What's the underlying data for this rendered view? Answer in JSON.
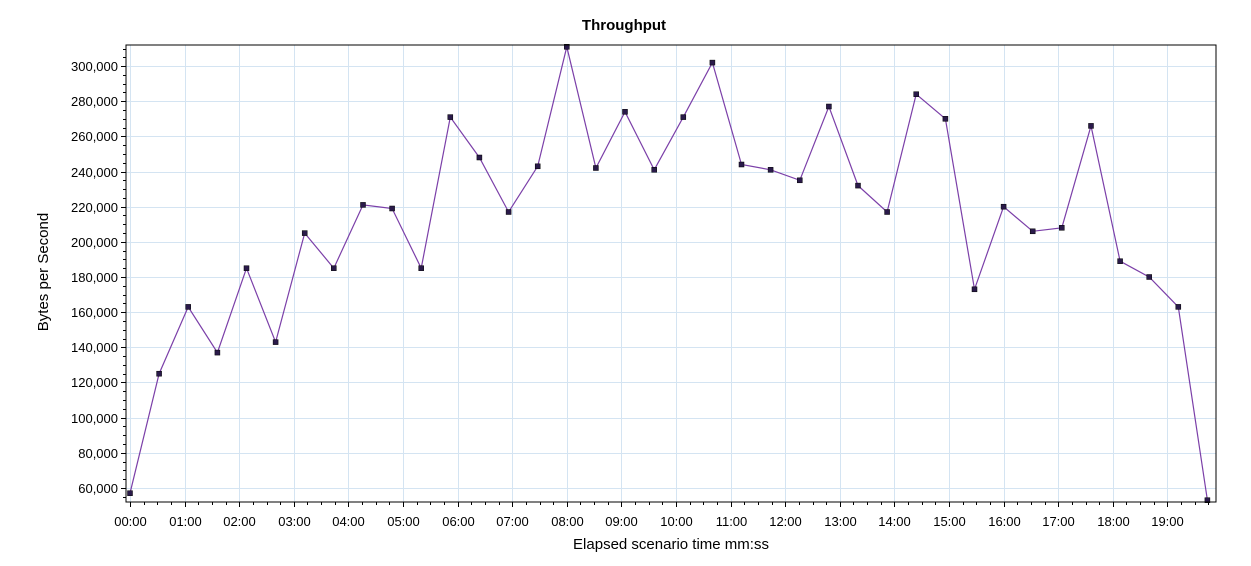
{
  "chart_data": {
    "type": "line",
    "title": "Throughput",
    "xlabel": "Elapsed scenario time mm:ss",
    "ylabel": "Bytes per Second",
    "xlim": [
      "00:00",
      "19:49"
    ],
    "ylim": [
      52000,
      312000
    ],
    "x_ticks": [
      "00:00",
      "01:00",
      "02:00",
      "03:00",
      "04:00",
      "05:00",
      "06:00",
      "07:00",
      "08:00",
      "09:00",
      "10:00",
      "11:00",
      "12:00",
      "13:00",
      "14:00",
      "15:00",
      "16:00",
      "17:00",
      "18:00",
      "19:00"
    ],
    "y_ticks": [
      "60,000",
      "80,000",
      "100,000",
      "120,000",
      "140,000",
      "160,000",
      "180,000",
      "200,000",
      "220,000",
      "240,000",
      "260,000",
      "280,000",
      "300,000"
    ],
    "grid": true,
    "series_color": "#7b3fa8",
    "series": [
      {
        "x": [
          "00:00",
          "00:32",
          "01:04",
          "01:36",
          "02:08",
          "02:40",
          "03:12",
          "03:44",
          "04:16",
          "04:48",
          "05:20",
          "05:52",
          "06:24",
          "06:56",
          "07:28",
          "08:00",
          "08:32",
          "09:04",
          "09:36",
          "10:08",
          "10:40",
          "11:12",
          "11:44",
          "12:16",
          "12:48",
          "13:20",
          "13:52",
          "14:24",
          "14:56",
          "15:28",
          "16:00",
          "16:32",
          "17:04",
          "17:36",
          "18:08",
          "18:40",
          "19:12",
          "19:44"
        ],
        "values": [
          57000,
          125000,
          163000,
          137000,
          185000,
          143000,
          205000,
          185000,
          221000,
          219000,
          185000,
          271000,
          248000,
          217000,
          243000,
          311000,
          242000,
          274000,
          241000,
          271000,
          302000,
          244000,
          241000,
          235000,
          277000,
          232000,
          217000,
          284000,
          270000,
          173000,
          220000,
          206000,
          208000,
          266000,
          189000,
          180000,
          163000,
          53000
        ]
      }
    ]
  }
}
